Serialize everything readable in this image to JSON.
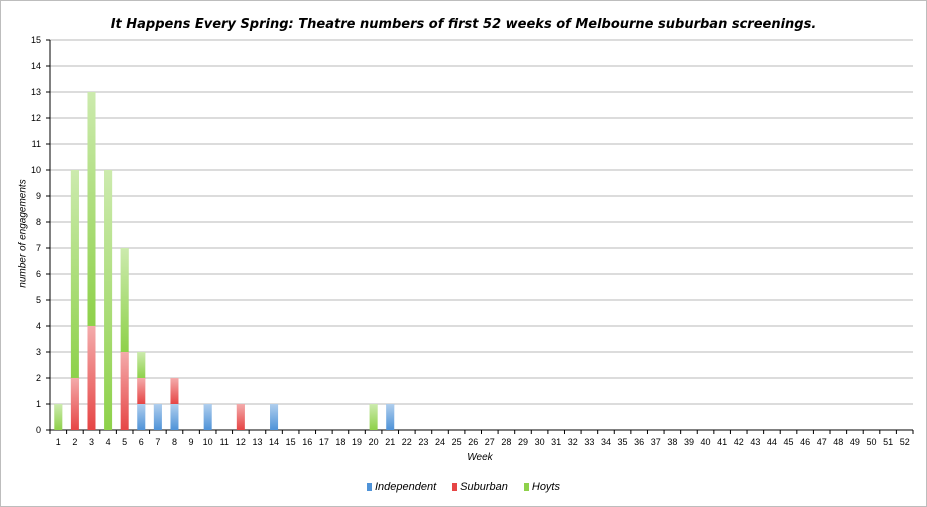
{
  "chart_data": {
    "type": "bar",
    "stacked": true,
    "title": "It Happens Every Spring: Theatre numbers of first 52 weeks of Melbourne suburban screenings.",
    "xlabel": "Week",
    "ylabel": "number of engagements",
    "ylim": [
      0,
      15
    ],
    "yticks": [
      0,
      1,
      2,
      3,
      4,
      5,
      6,
      7,
      8,
      9,
      10,
      11,
      12,
      13,
      14,
      15
    ],
    "grid": true,
    "legend": "bottom",
    "categories": [
      "1",
      "2",
      "3",
      "4",
      "5",
      "6",
      "7",
      "8",
      "9",
      "10",
      "11",
      "12",
      "13",
      "14",
      "15",
      "16",
      "17",
      "18",
      "19",
      "20",
      "21",
      "22",
      "23",
      "24",
      "25",
      "26",
      "27",
      "28",
      "29",
      "30",
      "31",
      "32",
      "33",
      "34",
      "35",
      "36",
      "37",
      "38",
      "39",
      "40",
      "41",
      "42",
      "43",
      "44",
      "45",
      "46",
      "47",
      "48",
      "49",
      "50",
      "51",
      "52"
    ],
    "series": [
      {
        "name": "Independent",
        "color": "#4f93d8",
        "values": [
          0,
          0,
          0,
          0,
          0,
          1,
          1,
          1,
          0,
          1,
          0,
          0,
          0,
          1,
          0,
          0,
          0,
          0,
          0,
          0,
          1,
          0,
          0,
          0,
          0,
          0,
          0,
          0,
          0,
          0,
          0,
          0,
          0,
          0,
          0,
          0,
          0,
          0,
          0,
          0,
          0,
          0,
          0,
          0,
          0,
          0,
          0,
          0,
          0,
          0,
          0,
          0
        ]
      },
      {
        "name": "Suburban",
        "color": "#e64545",
        "values": [
          0,
          2,
          4,
          0,
          3,
          1,
          0,
          1,
          0,
          0,
          0,
          1,
          0,
          0,
          0,
          0,
          0,
          0,
          0,
          0,
          0,
          0,
          0,
          0,
          0,
          0,
          0,
          0,
          0,
          0,
          0,
          0,
          0,
          0,
          0,
          0,
          0,
          0,
          0,
          0,
          0,
          0,
          0,
          0,
          0,
          0,
          0,
          0,
          0,
          0,
          0,
          0
        ]
      },
      {
        "name": "Hoyts",
        "color": "#8ed14a",
        "values": [
          1,
          8,
          9,
          10,
          4,
          1,
          0,
          0,
          0,
          0,
          0,
          0,
          0,
          0,
          0,
          0,
          0,
          0,
          0,
          1,
          0,
          0,
          0,
          0,
          0,
          0,
          0,
          0,
          0,
          0,
          0,
          0,
          0,
          0,
          0,
          0,
          0,
          0,
          0,
          0,
          0,
          0,
          0,
          0,
          0,
          0,
          0,
          0,
          0,
          0,
          0,
          0
        ]
      }
    ]
  }
}
